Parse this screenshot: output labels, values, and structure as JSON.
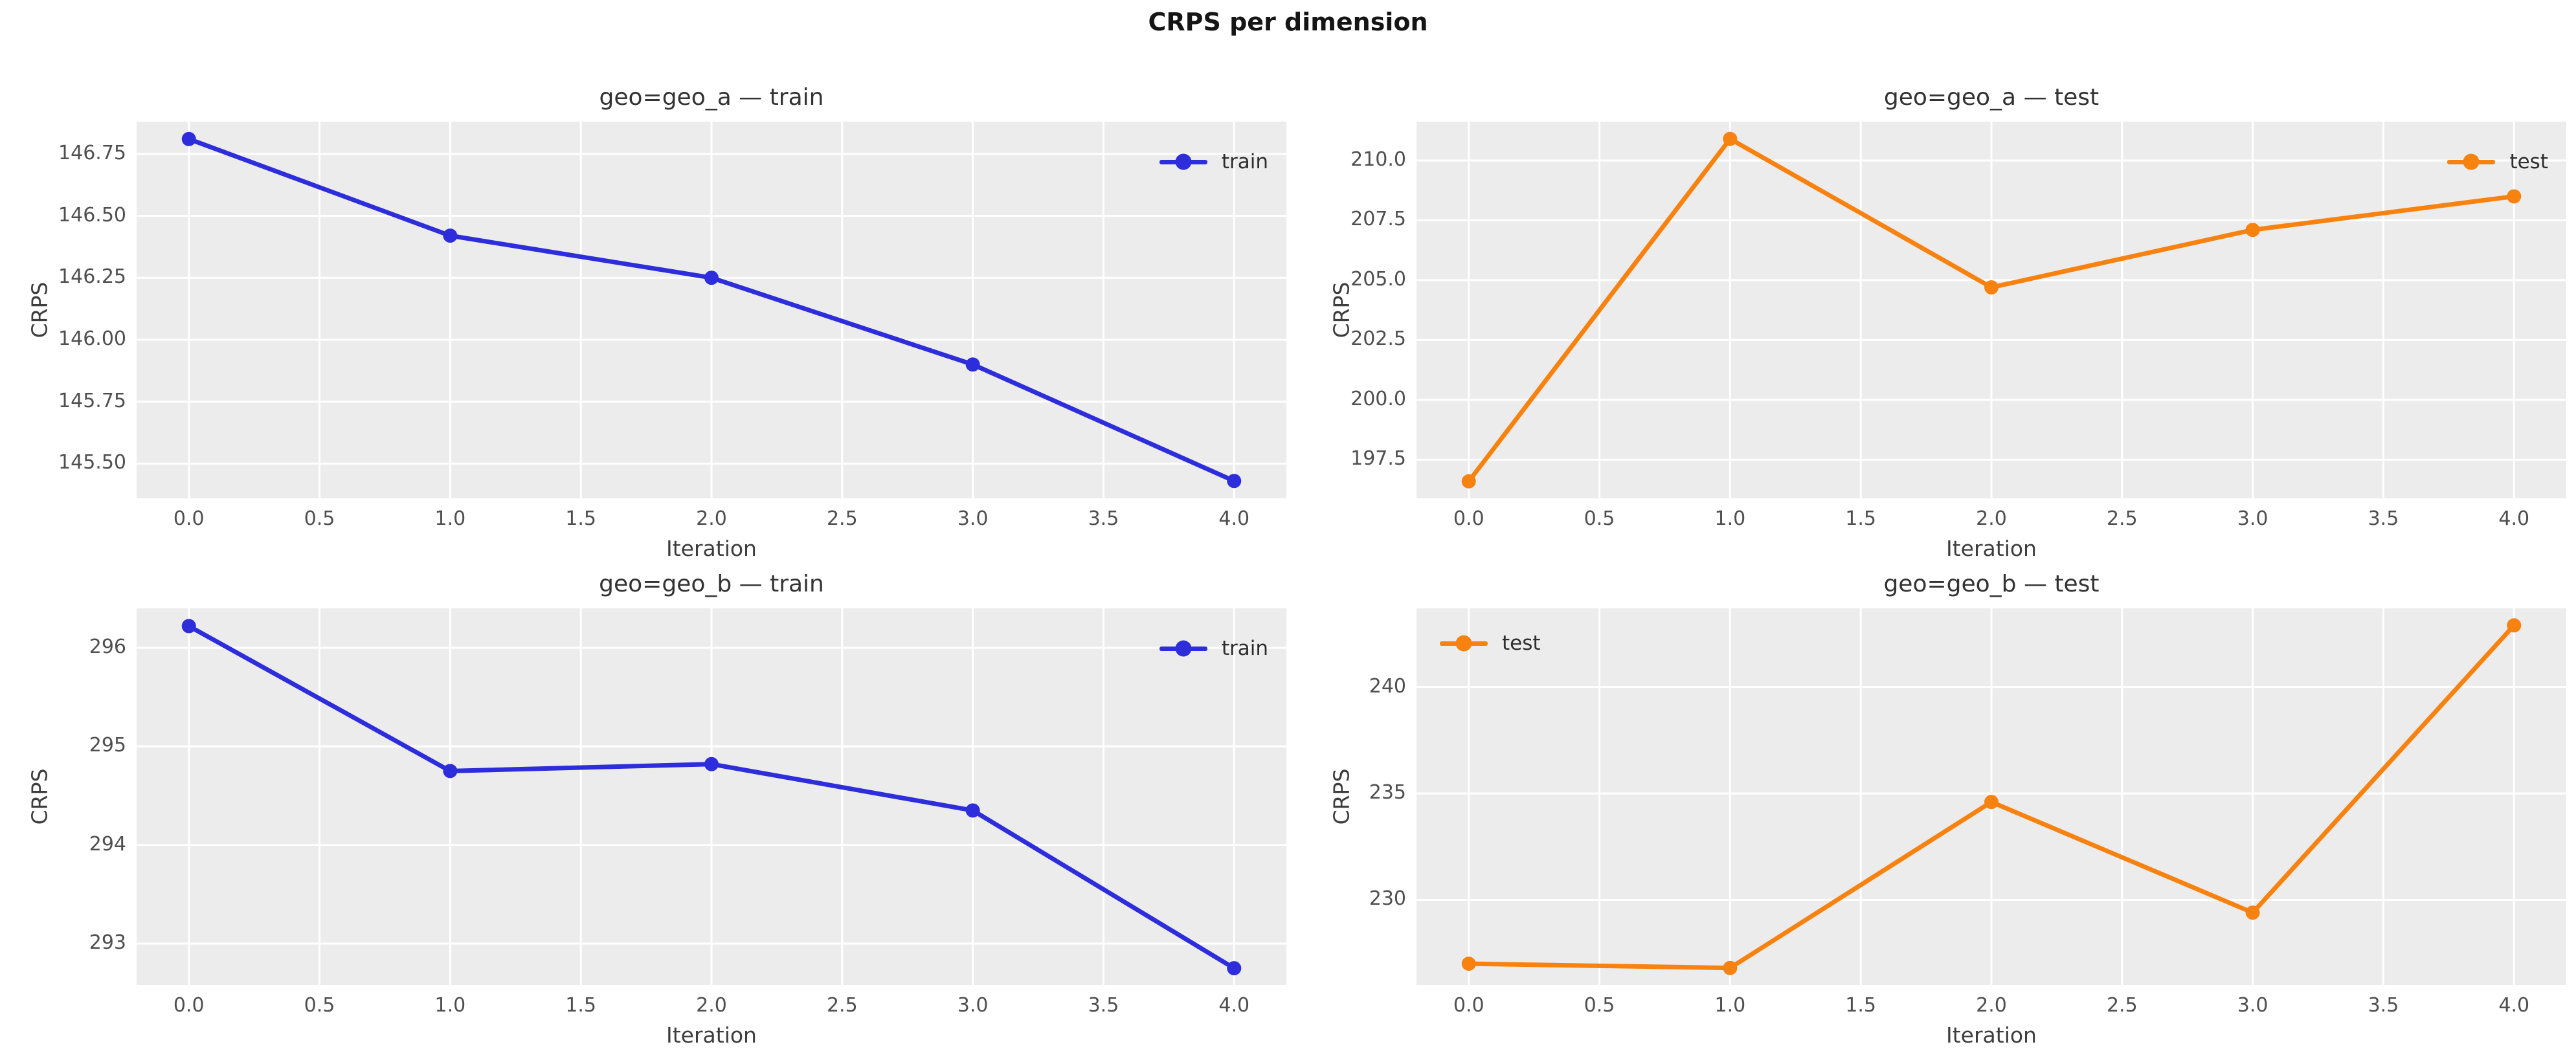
{
  "figure": {
    "suptitle": "CRPS per dimension"
  },
  "style": {
    "figure_background": "#ffffff",
    "axes_background": "#ececec",
    "grid_color": "#ffffff",
    "train_color": "#2d2ddb",
    "test_color": "#f8820f"
  },
  "chart_data": [
    {
      "type": "line",
      "title": "geo=geo_a — train",
      "xlabel": "Iteration",
      "ylabel": "CRPS",
      "legend": {
        "label": "train",
        "loc": "top-right"
      },
      "series": [
        {
          "name": "train",
          "color_key": "train_color",
          "x": [
            0,
            1,
            2,
            3,
            4
          ],
          "y": [
            146.81,
            146.42,
            146.25,
            145.9,
            145.43
          ]
        }
      ],
      "xlim": [
        -0.2,
        4.2
      ],
      "ylim": [
        145.36,
        146.88
      ],
      "xticks": {
        "values": [
          0,
          0.5,
          1,
          1.5,
          2,
          2.5,
          3,
          3.5,
          4
        ],
        "labels": [
          "0.0",
          "0.5",
          "1.0",
          "1.5",
          "2.0",
          "2.5",
          "3.0",
          "3.5",
          "4.0"
        ]
      },
      "yticks": {
        "values": [
          146.75,
          146.5,
          146.25,
          146.0,
          145.75,
          145.5
        ],
        "labels": [
          "146.75",
          "146.50",
          "146.25",
          "146.00",
          "145.75",
          "145.50"
        ]
      },
      "grid": true
    },
    {
      "type": "line",
      "title": "geo=geo_a — test",
      "xlabel": "Iteration",
      "ylabel": "CRPS",
      "legend": {
        "label": "test",
        "loc": "top-right"
      },
      "series": [
        {
          "name": "test",
          "color_key": "test_color",
          "x": [
            0,
            1,
            2,
            3,
            4
          ],
          "y": [
            196.6,
            210.9,
            204.7,
            207.1,
            208.5
          ]
        }
      ],
      "xlim": [
        -0.2,
        4.2
      ],
      "ylim": [
        195.89,
        211.62
      ],
      "xticks": {
        "values": [
          0,
          0.5,
          1,
          1.5,
          2,
          2.5,
          3,
          3.5,
          4
        ],
        "labels": [
          "0.0",
          "0.5",
          "1.0",
          "1.5",
          "2.0",
          "2.5",
          "3.0",
          "3.5",
          "4.0"
        ]
      },
      "yticks": {
        "values": [
          210.0,
          207.5,
          205.0,
          202.5,
          200.0,
          197.5
        ],
        "labels": [
          "210.0",
          "207.5",
          "205.0",
          "202.5",
          "200.0",
          "197.5"
        ]
      },
      "grid": true
    },
    {
      "type": "line",
      "title": "geo=geo_b — train",
      "xlabel": "Iteration",
      "ylabel": "CRPS",
      "legend": {
        "label": "train",
        "loc": "top-right"
      },
      "series": [
        {
          "name": "train",
          "color_key": "train_color",
          "x": [
            0,
            1,
            2,
            3,
            4
          ],
          "y": [
            296.22,
            294.75,
            294.82,
            294.35,
            292.75
          ]
        }
      ],
      "xlim": [
        -0.2,
        4.2
      ],
      "ylim": [
        292.58,
        296.4
      ],
      "xticks": {
        "values": [
          0,
          0.5,
          1,
          1.5,
          2,
          2.5,
          3,
          3.5,
          4
        ],
        "labels": [
          "0.0",
          "0.5",
          "1.0",
          "1.5",
          "2.0",
          "2.5",
          "3.0",
          "3.5",
          "4.0"
        ]
      },
      "yticks": {
        "values": [
          296,
          295,
          294,
          293
        ],
        "labels": [
          "296",
          "295",
          "294",
          "293"
        ]
      },
      "grid": true
    },
    {
      "type": "line",
      "title": "geo=geo_b — test",
      "xlabel": "Iteration",
      "ylabel": "CRPS",
      "legend": {
        "label": "test",
        "loc": "top-left"
      },
      "series": [
        {
          "name": "test",
          "color_key": "test_color",
          "x": [
            0,
            1,
            2,
            3,
            4
          ],
          "y": [
            227.0,
            226.8,
            234.6,
            229.4,
            242.9
          ]
        }
      ],
      "xlim": [
        -0.2,
        4.2
      ],
      "ylim": [
        226.0,
        243.7
      ],
      "xticks": {
        "values": [
          0,
          0.5,
          1,
          1.5,
          2,
          2.5,
          3,
          3.5,
          4
        ],
        "labels": [
          "0.0",
          "0.5",
          "1.0",
          "1.5",
          "2.0",
          "2.5",
          "3.0",
          "3.5",
          "4.0"
        ]
      },
      "yticks": {
        "values": [
          240,
          235,
          230
        ],
        "labels": [
          "240",
          "235",
          "230"
        ]
      },
      "grid": true
    }
  ]
}
